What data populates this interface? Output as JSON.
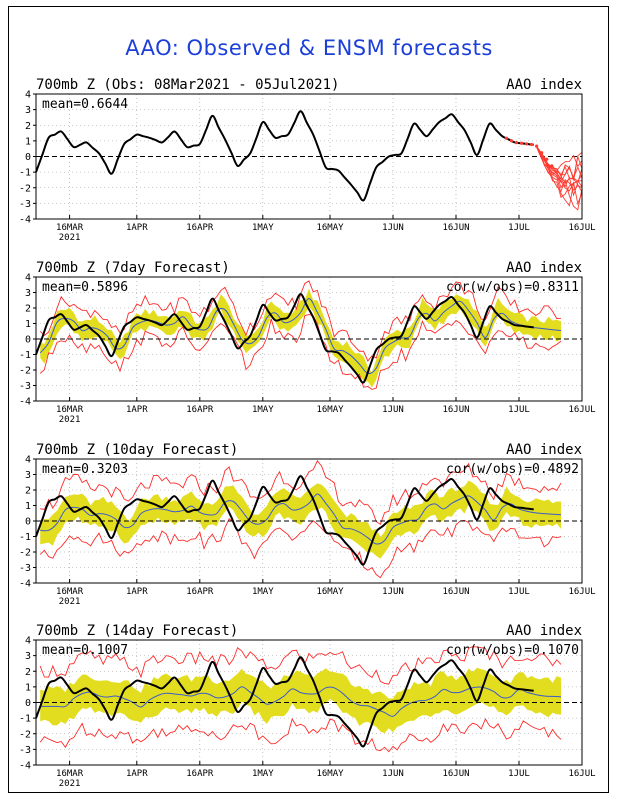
{
  "title": "AAO: Observed & ENSM forecasts",
  "colors": {
    "title": "#1d3fd9",
    "observed": "#000000",
    "ensemble_band": "#e3dd1f",
    "ensemble_range": "#ff2a2a",
    "ensemble_mean": "#3a5ccc",
    "forecast_members": "#ff3b30"
  },
  "x_ticks": [
    "16MAR",
    "1APR",
    "16APR",
    "1MAY",
    "16MAY",
    "1JUN",
    "16JUN",
    "1JUL",
    "16JUL"
  ],
  "x_year": "2021",
  "chart_data": [
    {
      "type": "line",
      "title": "700mb Z (Obs: 08Mar2021 - 05Jul2021)",
      "index_label": "AAO index",
      "stat_label": "mean=0.6644",
      "cor_label": "",
      "ylim": [
        -4,
        4
      ],
      "y_ticks": [
        -4,
        -3,
        -2,
        -1,
        0,
        1,
        2,
        3,
        4
      ],
      "zero_line": "dashed",
      "grid": true,
      "x_start": "2021-03-08",
      "x_end": "2021-07-16",
      "observed": {
        "days": [
          0,
          3,
          6,
          9,
          12,
          15,
          18,
          21,
          24,
          27,
          30,
          33,
          36,
          39,
          42,
          45,
          48,
          51,
          54,
          57,
          60,
          63,
          66,
          69,
          72,
          75,
          78,
          81,
          84,
          87,
          90,
          93,
          96,
          99,
          102,
          105,
          108,
          111,
          114,
          117,
          120,
          123
        ],
        "values": [
          -1.0,
          1.2,
          1.6,
          0.6,
          0.9,
          0.2,
          -1.1,
          0.8,
          1.4,
          1.2,
          0.9,
          1.6,
          0.6,
          0.8,
          2.6,
          1.1,
          -0.6,
          0.2,
          2.2,
          1.2,
          1.4,
          2.9,
          1.4,
          -0.7,
          -0.9,
          -1.8,
          -2.8,
          -0.7,
          0.0,
          0.2,
          2.1,
          1.3,
          2.2,
          2.7,
          1.7,
          0.1,
          2.1,
          1.3,
          0.9,
          0.8,
          0.7,
          0.6
        ]
      },
      "forecast_members": "forecast plume after 05Jul2021, values roughly -3 to 1"
    },
    {
      "type": "line",
      "title": "700mb Z (7day Forecast)",
      "index_label": "AAO index",
      "stat_label": "mean=0.5896",
      "cor_label": "cor(w/obs)=0.8311",
      "ylim": [
        -4,
        4
      ],
      "y_ticks": [
        -4,
        -3,
        -2,
        -1,
        0,
        1,
        2,
        3,
        4
      ],
      "zero_line": "dashed",
      "grid": true,
      "ensemble_mean_lag_days": 2,
      "ensemble_band_halfwidth": 0.55,
      "ensemble_range_halfwidth": 1.1
    },
    {
      "type": "line",
      "title": "700mb Z (10day Forecast)",
      "index_label": "AAO index",
      "stat_label": "mean=0.3203",
      "cor_label": "cor(w/obs)=0.4892",
      "ylim": [
        -4,
        4
      ],
      "y_ticks": [
        -4,
        -3,
        -2,
        -1,
        0,
        1,
        2,
        3,
        4
      ],
      "zero_line": "dashed",
      "grid": true,
      "ensemble_mean_lag_days": 4,
      "ensemble_band_halfwidth": 0.8,
      "ensemble_range_halfwidth": 1.7
    },
    {
      "type": "line",
      "title": "700mb Z (14day Forecast)",
      "index_label": "AAO index",
      "stat_label": "mean=0.1007",
      "cor_label": "cor(w/obs)=0.1070",
      "ylim": [
        -4,
        4
      ],
      "y_ticks": [
        -4,
        -3,
        -2,
        -1,
        0,
        1,
        2,
        3,
        4
      ],
      "zero_line": "dashed",
      "grid": true,
      "ensemble_mean_lag_days": 7,
      "ensemble_band_halfwidth": 1.1,
      "ensemble_range_halfwidth": 2.3
    }
  ]
}
